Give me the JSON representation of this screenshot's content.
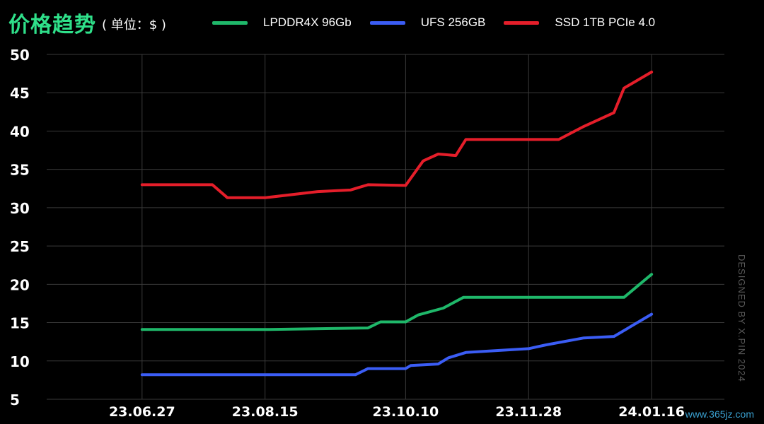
{
  "header": {
    "title": "价格趋势",
    "unit": "( 单位：$ )"
  },
  "colors": {
    "background": "#000000",
    "grid": "#3a3a3a",
    "title": "#2fe08a"
  },
  "watermark": "DESIGNED BY X.PIN 2024",
  "site": "www.365jz.com",
  "chart_data": {
    "type": "line",
    "title": "价格趋势",
    "ylabel": "( 单位：$ )",
    "xlabel": "",
    "ylim": [
      5,
      50
    ],
    "yticks": [
      5,
      10,
      15,
      20,
      25,
      30,
      35,
      40,
      45,
      50
    ],
    "xticks": [
      "23.06.27",
      "23.08.15",
      "23.10.10",
      "23.11.28",
      "24.01.16"
    ],
    "xlim": [
      "2023-05-20",
      "2024-02-14"
    ],
    "grid": true,
    "legend_position": "top",
    "series": [
      {
        "name": "LPDDR4X 96Gb",
        "color": "#1fb86a",
        "points": [
          [
            "2023-06-27",
            14.1
          ],
          [
            "2023-08-15",
            14.1
          ],
          [
            "2023-09-25",
            14.3
          ],
          [
            "2023-09-30",
            15.1
          ],
          [
            "2023-10-10",
            15.1
          ],
          [
            "2023-10-15",
            16.0
          ],
          [
            "2023-10-25",
            16.9
          ],
          [
            "2023-11-02",
            18.3
          ],
          [
            "2023-11-28",
            18.3
          ],
          [
            "2024-01-05",
            18.3
          ],
          [
            "2024-01-16",
            21.3
          ]
        ]
      },
      {
        "name": "UFS 256GB",
        "color": "#3b5df5",
        "points": [
          [
            "2023-06-27",
            8.2
          ],
          [
            "2023-09-20",
            8.2
          ],
          [
            "2023-09-25",
            9.0
          ],
          [
            "2023-10-10",
            9.0
          ],
          [
            "2023-10-12",
            9.4
          ],
          [
            "2023-10-23",
            9.6
          ],
          [
            "2023-10-27",
            10.4
          ],
          [
            "2023-11-03",
            11.1
          ],
          [
            "2023-11-28",
            11.6
          ],
          [
            "2023-12-05",
            12.1
          ],
          [
            "2023-12-20",
            13.0
          ],
          [
            "2024-01-01",
            13.2
          ],
          [
            "2024-01-16",
            16.1
          ]
        ]
      },
      {
        "name": "SSD 1TB PCIe 4.0",
        "color": "#e51e2a",
        "points": [
          [
            "2023-06-27",
            33.0
          ],
          [
            "2023-07-25",
            33.0
          ],
          [
            "2023-07-31",
            31.3
          ],
          [
            "2023-08-15",
            31.3
          ],
          [
            "2023-09-05",
            32.1
          ],
          [
            "2023-09-18",
            32.3
          ],
          [
            "2023-09-25",
            33.0
          ],
          [
            "2023-10-10",
            32.9
          ],
          [
            "2023-10-17",
            36.1
          ],
          [
            "2023-10-23",
            37.0
          ],
          [
            "2023-10-30",
            36.8
          ],
          [
            "2023-11-03",
            38.9
          ],
          [
            "2023-11-28",
            38.9
          ],
          [
            "2023-12-10",
            38.9
          ],
          [
            "2023-12-20",
            40.6
          ],
          [
            "2024-01-01",
            42.4
          ],
          [
            "2024-01-05",
            45.6
          ],
          [
            "2024-01-16",
            47.7
          ]
        ]
      }
    ]
  }
}
